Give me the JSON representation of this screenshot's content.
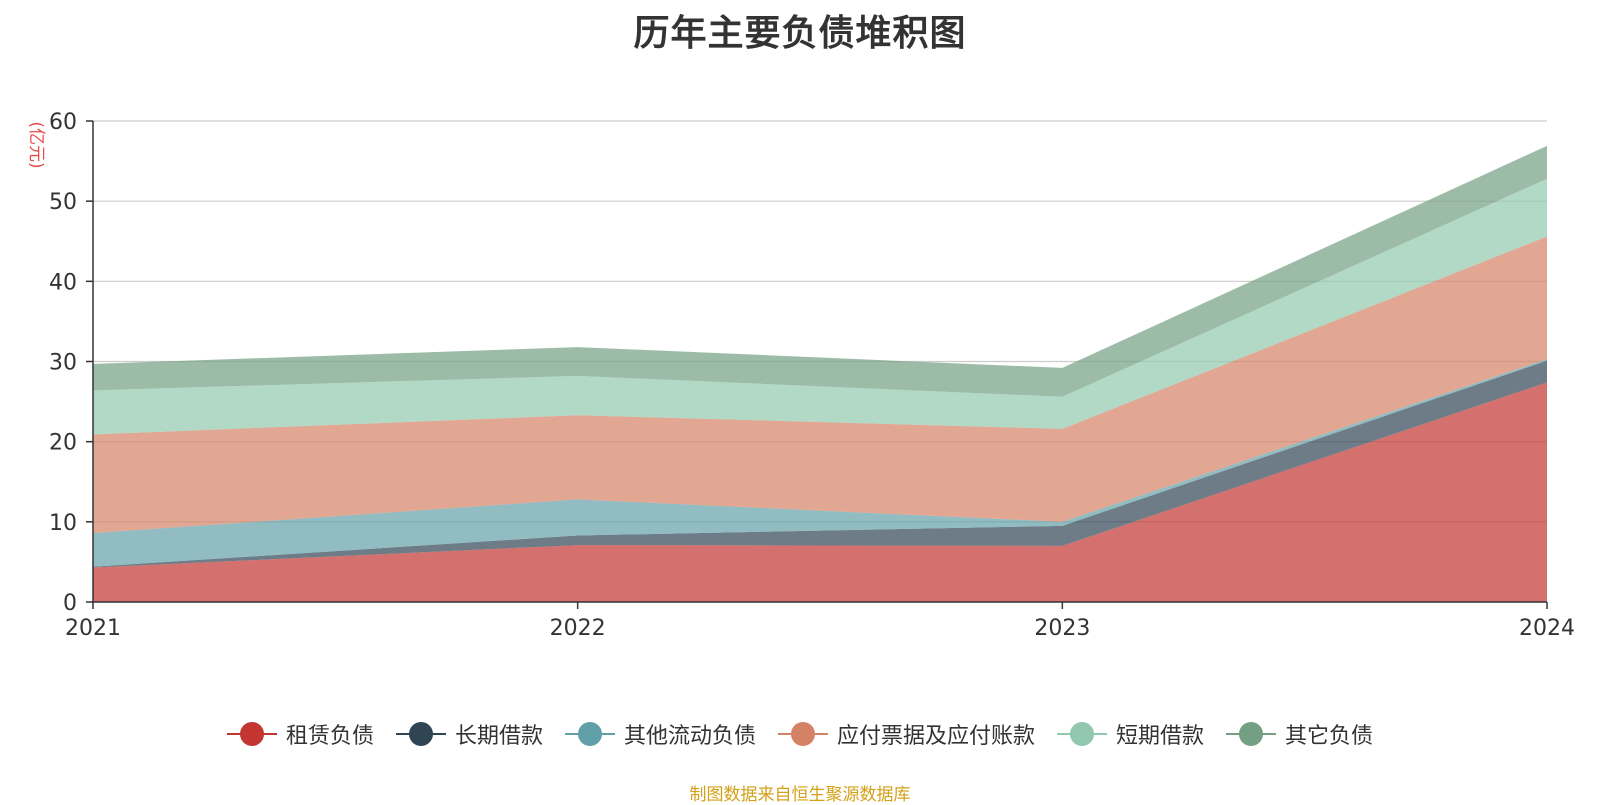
{
  "title": "历年主要负债堆积图",
  "source": "制图数据来自恒生聚源数据库",
  "chart_data": {
    "type": "area",
    "stacked": true,
    "title": "历年主要负债堆积图",
    "ylabel": "(亿元)",
    "xlabel": "",
    "categories": [
      "2021",
      "2022",
      "2023",
      "2024"
    ],
    "ylim": [
      0,
      60
    ],
    "yticks": [
      0,
      10,
      20,
      30,
      40,
      50,
      60
    ],
    "grid": true,
    "legend_position": "bottom",
    "series": [
      {
        "name": "租赁负债",
        "color": "#c23531",
        "values": [
          4.3,
          7.1,
          7.0,
          27.4
        ]
      },
      {
        "name": "长期借款",
        "color": "#2f4554",
        "values": [
          0.1,
          1.2,
          2.5,
          2.7
        ]
      },
      {
        "name": "其他流动负债",
        "color": "#61a0a8",
        "values": [
          4.2,
          4.5,
          0.5,
          0.2
        ]
      },
      {
        "name": "应付票据及应付账款",
        "color": "#d48265",
        "values": [
          12.3,
          10.5,
          11.6,
          15.3
        ]
      },
      {
        "name": "短期借款",
        "color": "#91c7ae",
        "values": [
          5.5,
          4.9,
          4.0,
          7.2
        ]
      },
      {
        "name": "其它负债",
        "color": "#749f83",
        "values": [
          3.3,
          3.6,
          3.6,
          4.1
        ]
      }
    ]
  }
}
